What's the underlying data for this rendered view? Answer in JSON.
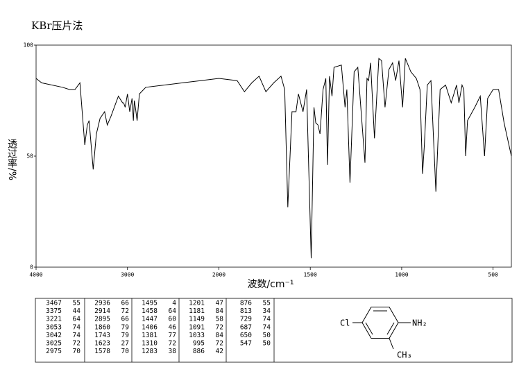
{
  "chart_data": {
    "type": "line",
    "title": "KBr压片法",
    "x_label": "波数/cm⁻¹",
    "y_label": "透过率/%",
    "xlim": [
      4000,
      400
    ],
    "xbreak": 2000,
    "xticks": [
      4000,
      3000,
      2000,
      1500,
      1000,
      500
    ],
    "ylim": [
      0,
      100
    ],
    "yticks": [
      0,
      50,
      100
    ],
    "series": [
      {
        "color": "#000000",
        "x": [
          4000,
          3939,
          3711,
          3635,
          3574,
          3520,
          3467,
          3440,
          3420,
          3375,
          3340,
          3300,
          3250,
          3221,
          3180,
          3100,
          3053,
          3042,
          3025,
          3000,
          2975,
          2950,
          2936,
          2925,
          2914,
          2895,
          2870,
          2800,
          2600,
          2400,
          2200,
          2000,
          1900,
          1860,
          1820,
          1780,
          1743,
          1700,
          1660,
          1640,
          1623,
          1600,
          1578,
          1565,
          1540,
          1520,
          1495,
          1480,
          1470,
          1458,
          1447,
          1430,
          1415,
          1406,
          1395,
          1381,
          1370,
          1330,
          1310,
          1300,
          1283,
          1260,
          1240,
          1201,
          1190,
          1181,
          1170,
          1149,
          1125,
          1110,
          1091,
          1070,
          1050,
          1033,
          1015,
          995,
          980,
          950,
          920,
          900,
          886,
          876,
          860,
          840,
          813,
          790,
          760,
          729,
          700,
          687,
          670,
          660,
          650,
          640,
          600,
          570,
          547,
          530,
          500,
          470,
          440,
          400
        ],
        "values": [
          85,
          83,
          81,
          80,
          80,
          83,
          55,
          64,
          66,
          44,
          60,
          67,
          70,
          64,
          68,
          77,
          74,
          74,
          72,
          78,
          70,
          76,
          66,
          75,
          72,
          66,
          78,
          81,
          82,
          83,
          84,
          85,
          84,
          79,
          83,
          86,
          79,
          83,
          86,
          80,
          27,
          70,
          70,
          78,
          70,
          80,
          4,
          72,
          65,
          64,
          60,
          80,
          85,
          46,
          86,
          77,
          90,
          91,
          72,
          80,
          38,
          88,
          90,
          47,
          85,
          84,
          92,
          58,
          94,
          93,
          72,
          89,
          92,
          84,
          93,
          72,
          94,
          88,
          85,
          80,
          42,
          55,
          82,
          84,
          34,
          80,
          82,
          74,
          82,
          74,
          82,
          80,
          50,
          66,
          72,
          77,
          50,
          76,
          80,
          80,
          65,
          50
        ]
      }
    ]
  },
  "peak_table": {
    "wavenumbers": [
      3467,
      3375,
      3221,
      3053,
      3042,
      3025,
      2975,
      2936,
      2914,
      2895,
      1860,
      1743,
      1623,
      1578,
      1495,
      1458,
      1447,
      1406,
      1381,
      1310,
      1283,
      1201,
      1181,
      1149,
      1091,
      1033,
      995,
      886,
      876,
      813,
      729,
      687,
      650,
      547
    ],
    "transmittance": [
      55,
      44,
      64,
      74,
      74,
      72,
      70,
      66,
      72,
      66,
      79,
      79,
      27,
      70,
      4,
      64,
      60,
      46,
      77,
      72,
      38,
      47,
      84,
      58,
      72,
      84,
      72,
      42,
      55,
      34,
      74,
      74,
      50,
      50
    ]
  },
  "structure": {
    "substituents": [
      "Cl",
      "NH₂",
      "CH₃"
    ]
  }
}
